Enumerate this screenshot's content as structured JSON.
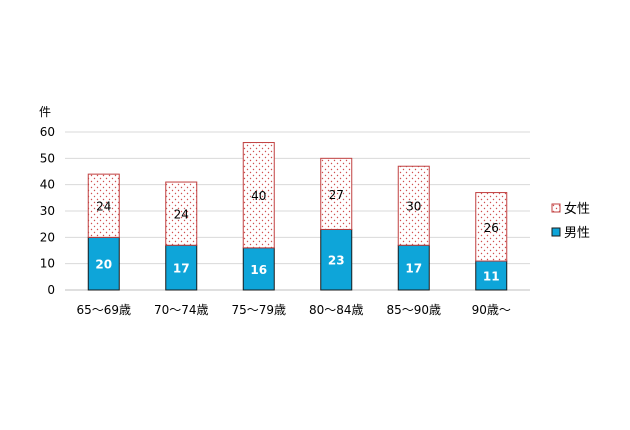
{
  "chart_data": {
    "type": "bar",
    "stacked": true,
    "ylabel": "件",
    "ylim": [
      0,
      60
    ],
    "yticks": [
      0,
      10,
      20,
      30,
      40,
      50,
      60
    ],
    "grid": true,
    "legend_placement": "right",
    "categories": [
      "65～69歳",
      "70～74歳",
      "75～79歳",
      "80～84歳",
      "85～90歳",
      "90歳～"
    ],
    "series": [
      {
        "name": "男性",
        "values": [
          20,
          17,
          16,
          23,
          17,
          11
        ],
        "color": "#0ea5d9",
        "pattern": "solid"
      },
      {
        "name": "女性",
        "values": [
          24,
          24,
          40,
          27,
          30,
          26
        ],
        "color": "#e06666",
        "pattern": "dots"
      }
    ]
  }
}
